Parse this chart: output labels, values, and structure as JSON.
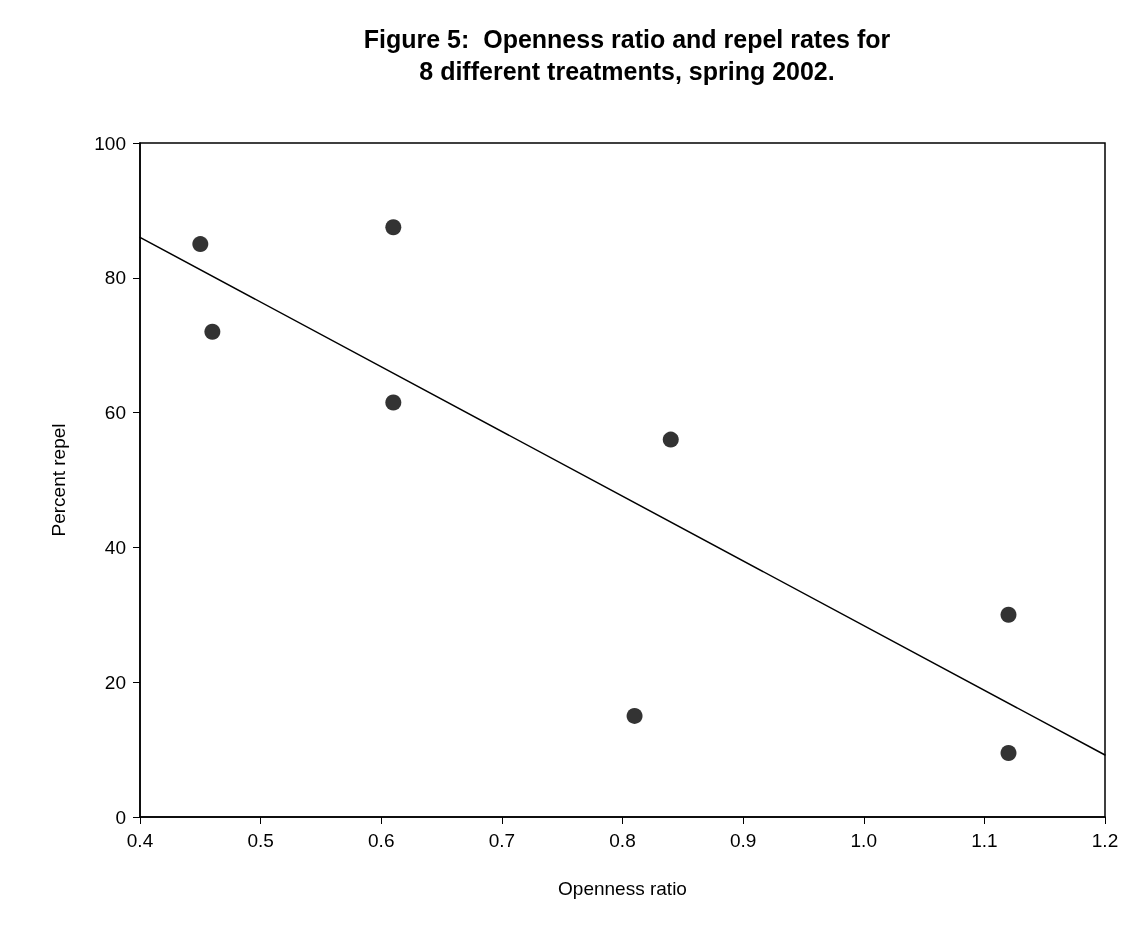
{
  "chart_data": {
    "type": "scatter",
    "title": "Figure 5:  Openness ratio and repel rates for\n8 different treatments, spring 2002.",
    "xlabel": "Openness ratio",
    "ylabel": "Percent repel",
    "xlim": [
      0.4,
      1.2
    ],
    "xticks": [
      0.4,
      0.5,
      0.6,
      0.7,
      0.8,
      0.9,
      {
        "value": 1,
        "label": "1.0"
      },
      1.1,
      1.2
    ],
    "ylim": [
      0,
      100
    ],
    "yticks": [
      0,
      20,
      40,
      60,
      80,
      100
    ],
    "grid": false,
    "series": [
      {
        "color": "#000000",
        "marker": "circle",
        "x": [
          0.45,
          0.46,
          0.61,
          0.61,
          0.84,
          0.81,
          1.12,
          1.12
        ],
        "values": [
          85,
          72,
          87.5,
          61.5,
          56,
          15,
          30,
          9.5
        ]
      },
      {
        "type": "line",
        "color": "#000000",
        "marker": "none",
        "line_style": "solid",
        "x": [
          0.4,
          1.2
        ],
        "values": [
          86,
          9.2
        ]
      }
    ]
  }
}
